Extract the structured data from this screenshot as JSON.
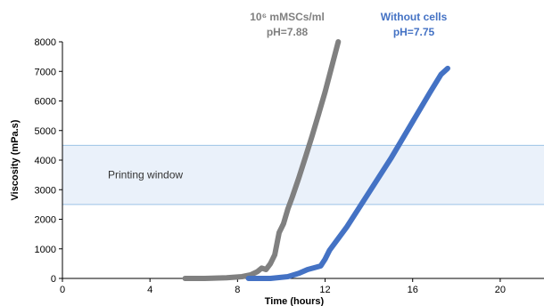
{
  "chart_data": {
    "type": "line",
    "xlabel": "Time (hours)",
    "ylabel": "Viscosity (mPa.s)",
    "xlim": [
      0,
      22
    ],
    "ylim": [
      0,
      8000
    ],
    "x_ticks": [
      0,
      4,
      8,
      12,
      16,
      20
    ],
    "y_ticks": [
      0,
      1000,
      2000,
      3000,
      4000,
      5000,
      6000,
      7000,
      8000
    ],
    "band": {
      "label": "Printing window",
      "y_from": 2500,
      "y_to": 4500,
      "fill": "#eaf1fa",
      "edge": "#9dc3e6"
    },
    "series": [
      {
        "color": "#808080",
        "annotation_lines": [
          "10⁶ mMSCs/ml",
          "pH=7.88"
        ],
        "x": [
          5.6,
          6.5,
          7.5,
          8.2,
          8.6,
          8.9,
          9.1,
          9.3,
          9.5,
          9.7,
          9.9,
          10.1,
          10.3,
          10.5,
          10.8,
          11.1,
          11.4,
          11.7,
          12.0,
          12.3,
          12.6
        ],
        "y": [
          0,
          0,
          20,
          60,
          120,
          230,
          350,
          300,
          500,
          800,
          1550,
          1850,
          2350,
          2750,
          3400,
          4100,
          4800,
          5550,
          6300,
          7150,
          8000
        ]
      },
      {
        "color": "#4472c4",
        "annotation_lines": [
          "Without cells",
          "pH=7.75"
        ],
        "x": [
          8.5,
          9.5,
          10.3,
          10.8,
          11.2,
          11.5,
          11.8,
          12.0,
          12.2,
          13.0,
          14.0,
          15.0,
          16.0,
          16.8,
          17.3,
          17.6
        ],
        "y": [
          0,
          0,
          60,
          170,
          300,
          360,
          420,
          650,
          950,
          1750,
          2900,
          4050,
          5300,
          6300,
          6900,
          7100
        ]
      }
    ]
  }
}
